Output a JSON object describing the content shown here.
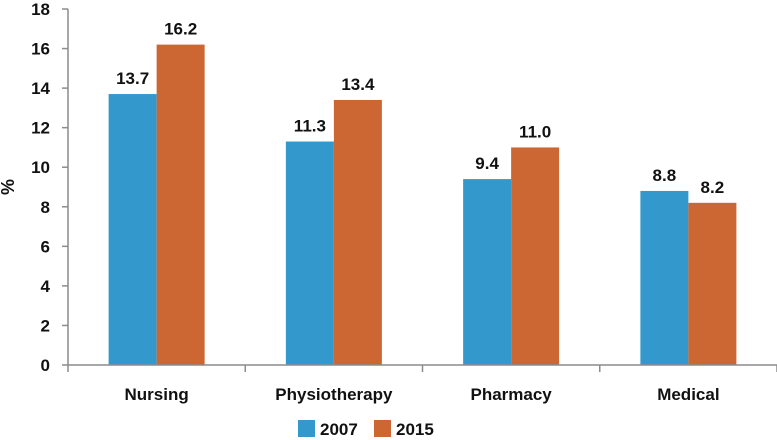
{
  "chart_data": {
    "type": "bar",
    "title": "",
    "xlabel": "",
    "ylabel": "%",
    "ylim": [
      0,
      18
    ],
    "yticks": [
      0,
      2,
      4,
      6,
      8,
      10,
      12,
      14,
      16,
      18
    ],
    "categories": [
      "Nursing",
      "Physiotherapy",
      "Pharmacy",
      "Medical"
    ],
    "series": [
      {
        "name": "2007",
        "color": "#3399CC",
        "values": [
          13.7,
          11.3,
          9.4,
          8.8
        ],
        "labels": [
          "13.7",
          "11.3",
          "9.4",
          "8.8"
        ]
      },
      {
        "name": "2015",
        "color": "#CC6633",
        "values": [
          16.2,
          13.4,
          11.0,
          8.2
        ],
        "labels": [
          "16.2",
          "13.4",
          "11.0",
          "8.2"
        ]
      }
    ],
    "grid": false,
    "legend": "bottom"
  }
}
